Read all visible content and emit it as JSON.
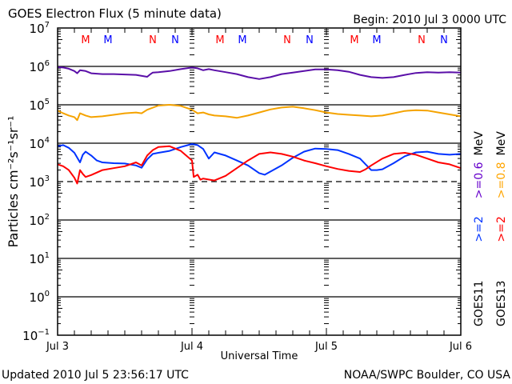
{
  "chart_data": {
    "type": "line",
    "title": "GOES Electron Flux (5 minute data)",
    "begin_label": "Begin: 2010 Jul 3 0000 UTC",
    "xlabel": "Universal Time",
    "ylabel": "Particles cm⁻²s⁻¹sr⁻¹",
    "yscale": "log",
    "ylim_log10": [
      -1,
      7
    ],
    "xlim_hours": [
      0,
      72
    ],
    "x_ticks": [
      {
        "hour": 0,
        "label": "Jul 3"
      },
      {
        "hour": 24,
        "label": "Jul 4"
      },
      {
        "hour": 48,
        "label": "Jul 5"
      },
      {
        "hour": 72,
        "label": "Jul 6"
      }
    ],
    "y_ticks": [
      {
        "exp": 7,
        "label": "10",
        "sup": "7"
      },
      {
        "exp": 6,
        "label": "10",
        "sup": "6"
      },
      {
        "exp": 5,
        "label": "10",
        "sup": "5"
      },
      {
        "exp": 4,
        "label": "10",
        "sup": "4"
      },
      {
        "exp": 3,
        "label": "10",
        "sup": "3"
      },
      {
        "exp": 2,
        "label": "10",
        "sup": "2"
      },
      {
        "exp": 1,
        "label": "10",
        "sup": "1"
      },
      {
        "exp": 0,
        "label": "10",
        "sup": "0"
      },
      {
        "exp": -1,
        "label": "10",
        "sup": "−1"
      }
    ],
    "grid_lines_log10": [
      6,
      5,
      4,
      2,
      1,
      0
    ],
    "threshold_line_log10": 3,
    "markers": [
      {
        "hour": 5,
        "label": "M",
        "color": "#ff0000"
      },
      {
        "hour": 9,
        "label": "M",
        "color": "#0000ff"
      },
      {
        "hour": 17,
        "label": "N",
        "color": "#ff0000"
      },
      {
        "hour": 21,
        "label": "N",
        "color": "#0000ff"
      },
      {
        "hour": 29,
        "label": "M",
        "color": "#ff0000"
      },
      {
        "hour": 33,
        "label": "M",
        "color": "#0000ff"
      },
      {
        "hour": 41,
        "label": "N",
        "color": "#ff0000"
      },
      {
        "hour": 45,
        "label": "N",
        "color": "#0000ff"
      },
      {
        "hour": 53,
        "label": "M",
        "color": "#ff0000"
      },
      {
        "hour": 57,
        "label": "M",
        "color": "#0000ff"
      },
      {
        "hour": 65,
        "label": "N",
        "color": "#ff0000"
      },
      {
        "hour": 69,
        "label": "N",
        "color": "#0000ff"
      }
    ],
    "legend": {
      "position": "right",
      "columns": [
        {
          "satellite": "GOES11",
          "entries": [
            {
              "label": ">=2",
              "color": "#0033ff"
            },
            {
              "label": ">=0.6",
              "color": "#6600cc"
            },
            {
              "label": "MeV",
              "color": "#000000"
            }
          ]
        },
        {
          "satellite": "GOES13",
          "entries": [
            {
              "label": ">=2",
              "color": "#ff0000"
            },
            {
              "label": ">=0.8",
              "color": "#ffa500"
            },
            {
              "label": "MeV",
              "color": "#000000"
            }
          ]
        }
      ]
    },
    "series": [
      {
        "name": "GOES11 >=0.6 MeV",
        "color": "#5a0fa8",
        "hours": [
          0,
          1,
          2,
          3,
          3.5,
          4,
          5,
          6,
          8,
          10,
          12,
          14,
          16,
          16.5,
          17,
          18,
          20,
          22,
          24,
          25,
          26,
          27,
          28,
          30,
          32,
          34,
          36,
          38,
          40,
          42,
          44,
          46,
          48,
          50,
          52,
          54,
          56,
          58,
          60,
          62,
          64,
          66,
          68,
          70,
          72
        ],
        "log10": [
          5.98,
          5.97,
          5.94,
          5.88,
          5.82,
          5.9,
          5.88,
          5.82,
          5.8,
          5.8,
          5.79,
          5.78,
          5.73,
          5.79,
          5.84,
          5.85,
          5.88,
          5.93,
          5.97,
          5.95,
          5.9,
          5.93,
          5.9,
          5.85,
          5.8,
          5.72,
          5.67,
          5.72,
          5.8,
          5.84,
          5.88,
          5.92,
          5.92,
          5.9,
          5.86,
          5.78,
          5.72,
          5.7,
          5.72,
          5.78,
          5.83,
          5.85,
          5.84,
          5.85,
          5.84
        ]
      },
      {
        "name": "GOES13 >=0.8 MeV",
        "color": "#f5a300",
        "hours": [
          0,
          1,
          2,
          3,
          3.5,
          4,
          5,
          6,
          8,
          10,
          12,
          14,
          15,
          16,
          18,
          20,
          22,
          24,
          25,
          26,
          27,
          28,
          30,
          32,
          34,
          36,
          38,
          40,
          42,
          44,
          46,
          48,
          50,
          52,
          54,
          56,
          58,
          60,
          62,
          64,
          66,
          68,
          70,
          72
        ],
        "log10": [
          4.85,
          4.78,
          4.72,
          4.68,
          4.6,
          4.78,
          4.72,
          4.68,
          4.7,
          4.74,
          4.78,
          4.8,
          4.78,
          4.87,
          4.98,
          5.0,
          4.97,
          4.87,
          4.78,
          4.8,
          4.75,
          4.72,
          4.7,
          4.66,
          4.72,
          4.8,
          4.88,
          4.93,
          4.95,
          4.91,
          4.86,
          4.8,
          4.76,
          4.74,
          4.72,
          4.7,
          4.72,
          4.78,
          4.84,
          4.86,
          4.85,
          4.8,
          4.75,
          4.7
        ]
      },
      {
        "name": "GOES11 >=2 MeV",
        "color": "#0033ff",
        "hours": [
          0,
          1,
          2,
          3,
          4,
          4.5,
          5,
          6,
          7,
          8,
          10,
          12,
          14,
          15,
          16,
          17,
          18,
          20,
          22,
          24,
          25,
          26,
          27,
          28,
          30,
          32,
          34,
          36,
          37,
          38,
          40,
          42,
          44,
          46,
          48,
          50,
          52,
          54,
          55,
          56,
          57,
          58,
          60,
          62,
          64,
          66,
          68,
          70,
          72
        ],
        "log10": [
          3.92,
          3.95,
          3.88,
          3.75,
          3.5,
          3.7,
          3.78,
          3.68,
          3.55,
          3.5,
          3.48,
          3.47,
          3.42,
          3.36,
          3.58,
          3.72,
          3.75,
          3.8,
          3.9,
          3.98,
          3.95,
          3.85,
          3.6,
          3.76,
          3.68,
          3.55,
          3.42,
          3.22,
          3.18,
          3.26,
          3.42,
          3.62,
          3.78,
          3.86,
          3.85,
          3.82,
          3.72,
          3.6,
          3.45,
          3.3,
          3.3,
          3.32,
          3.48,
          3.66,
          3.76,
          3.78,
          3.72,
          3.7,
          3.72
        ]
      },
      {
        "name": "GOES13 >=2 MeV",
        "color": "#ff0000",
        "hours": [
          0,
          1,
          2,
          3,
          3.5,
          4,
          4.5,
          5,
          6,
          8,
          10,
          12,
          14,
          15,
          16,
          17,
          18,
          20,
          22,
          24,
          24.3,
          25,
          25.5,
          26,
          28,
          30,
          32,
          34,
          36,
          38,
          40,
          42,
          44,
          46,
          48,
          50,
          52,
          54,
          55,
          56,
          58,
          60,
          62,
          64,
          66,
          68,
          70,
          72
        ],
        "log10": [
          3.45,
          3.4,
          3.3,
          3.1,
          2.95,
          3.3,
          3.2,
          3.12,
          3.17,
          3.3,
          3.35,
          3.4,
          3.5,
          3.42,
          3.68,
          3.82,
          3.9,
          3.92,
          3.8,
          3.55,
          3.12,
          3.18,
          3.05,
          3.08,
          3.03,
          3.15,
          3.35,
          3.55,
          3.72,
          3.76,
          3.72,
          3.65,
          3.55,
          3.48,
          3.4,
          3.33,
          3.28,
          3.25,
          3.32,
          3.42,
          3.6,
          3.72,
          3.75,
          3.7,
          3.6,
          3.5,
          3.45,
          3.35
        ]
      }
    ]
  },
  "footer": {
    "updated": "Updated 2010 Jul  5 23:56:17 UTC",
    "credit": "NOAA/SWPC Boulder, CO USA"
  }
}
